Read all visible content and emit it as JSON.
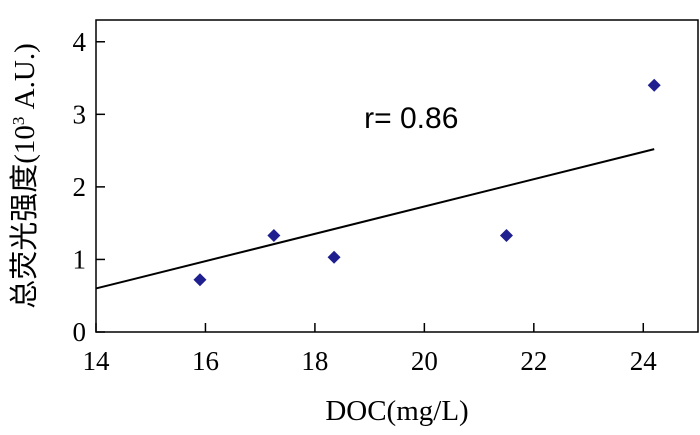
{
  "chart_data": {
    "type": "scatter",
    "xlabel": "DOC(mg/L)",
    "ylabel_main": "总荧光强度(10",
    "ylabel_sup": "3",
    "ylabel_tail": " A.U.)",
    "xlim": [
      14,
      25
    ],
    "ylim": [
      0,
      4.3
    ],
    "x_ticks": [
      14,
      16,
      18,
      20,
      22,
      24
    ],
    "y_ticks": [
      0,
      1,
      2,
      3,
      4
    ],
    "grid": false,
    "legend": "none",
    "marker_color": "#1f1f8f",
    "marker": "diamond",
    "points": [
      {
        "x": 15.9,
        "y": 0.72
      },
      {
        "x": 17.25,
        "y": 1.33
      },
      {
        "x": 18.35,
        "y": 1.03
      },
      {
        "x": 21.5,
        "y": 1.33
      },
      {
        "x": 24.2,
        "y": 3.4
      }
    ],
    "fit_line": {
      "x": [
        14,
        24.2
      ],
      "y": [
        0.6,
        2.52
      ]
    },
    "annotation": {
      "text": "r= 0.86",
      "x": 18.9,
      "y": 2.95
    }
  }
}
